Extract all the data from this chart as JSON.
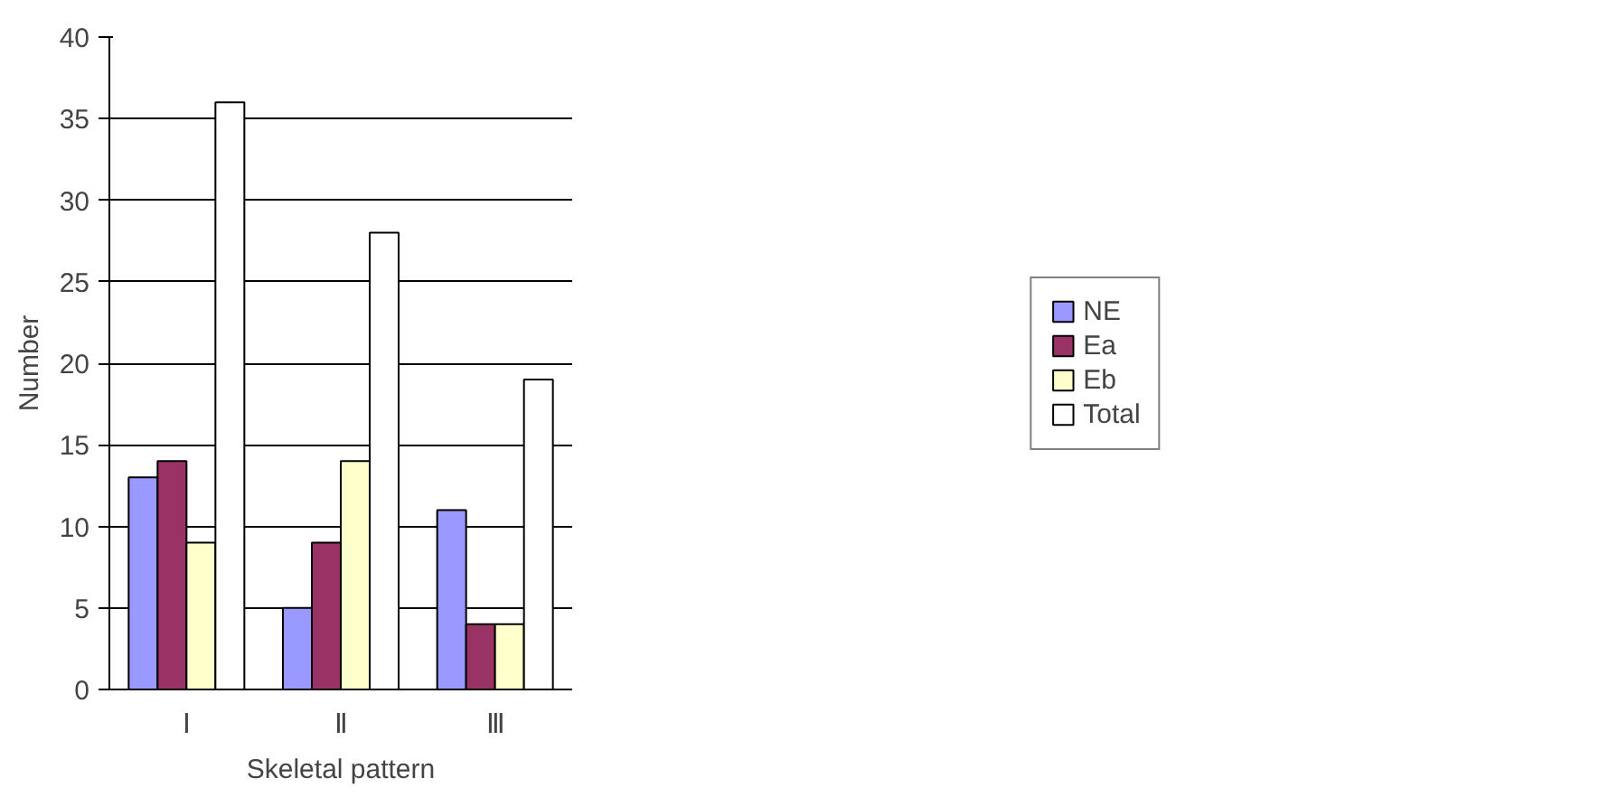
{
  "chart_data": {
    "type": "bar",
    "xlabel": "Skeletal pattern",
    "ylabel": "Number",
    "categories": [
      "Ⅰ",
      "Ⅱ",
      "Ⅲ"
    ],
    "series": [
      {
        "name": "NE",
        "color": "#9999ff",
        "values": [
          13,
          5,
          11
        ]
      },
      {
        "name": "Ea",
        "color": "#993366",
        "values": [
          14,
          9,
          4
        ]
      },
      {
        "name": "Eb",
        "color": "#ffffcc",
        "values": [
          9,
          14,
          4
        ]
      },
      {
        "name": "Total",
        "color": "#ffffff",
        "values": [
          36,
          28,
          19
        ]
      }
    ],
    "ylim": [
      0,
      40
    ],
    "yticks": [
      0,
      5,
      10,
      15,
      20,
      25,
      30,
      35,
      40
    ],
    "grid": "y",
    "legend": "right"
  }
}
